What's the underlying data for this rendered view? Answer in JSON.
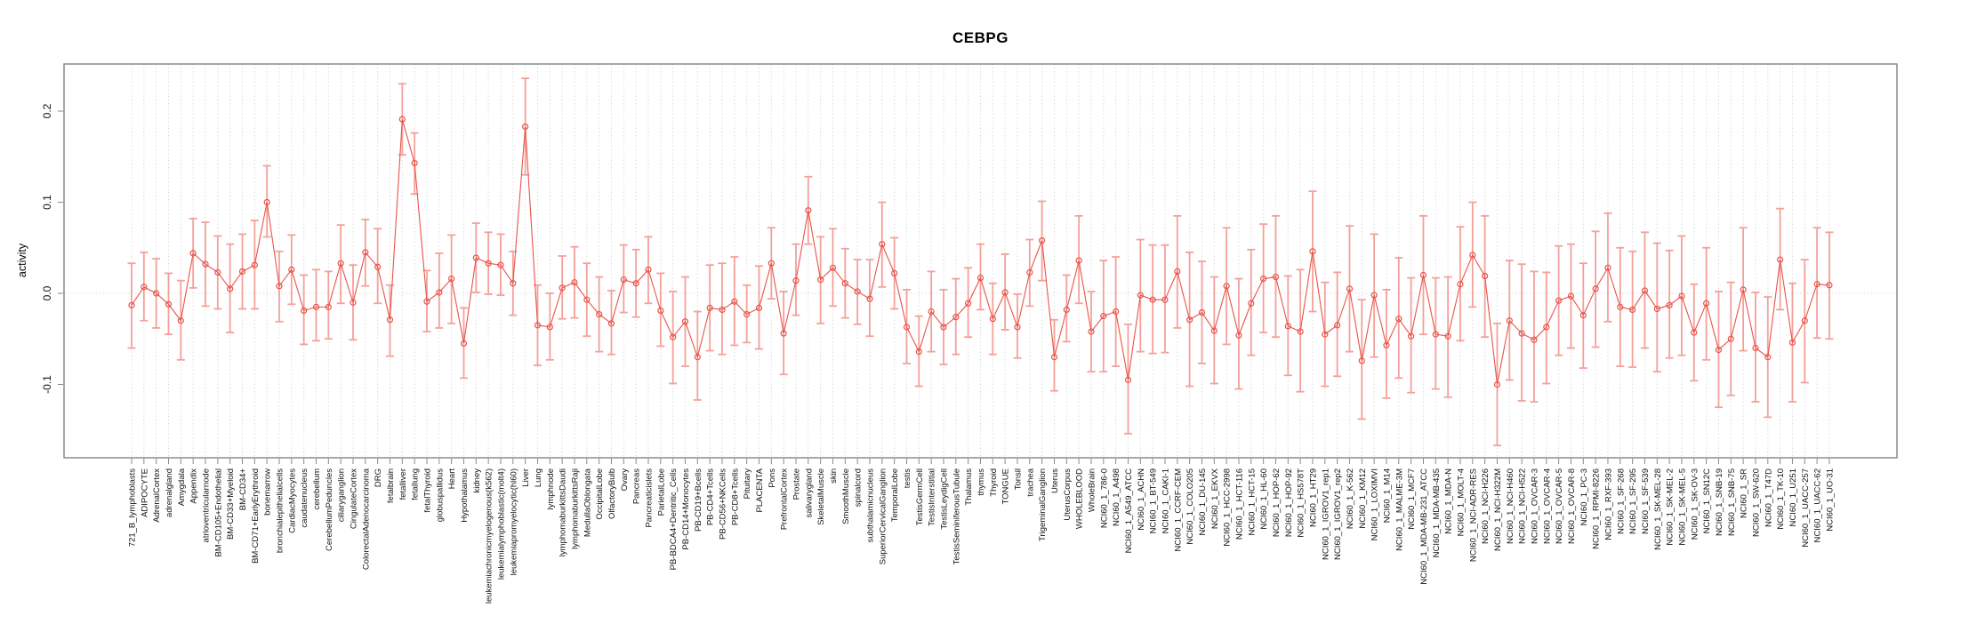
{
  "title": "CEBPG",
  "y_axis_label": "activity",
  "chart_data": {
    "type": "scatter",
    "subtype": "points-with-error-bars-and-connecting-line",
    "title": "CEBPG",
    "xlabel": "",
    "ylabel": "activity",
    "ylim": [
      -0.175,
      0.252
    ],
    "yticks": [
      -0.1,
      0.0,
      0.1,
      0.2
    ],
    "ytick_labels": [
      "-0.1",
      "0.0",
      "0.1",
      "0.2"
    ],
    "grid": "vertical dotted gridline per category; dotted horizontal line at y=0",
    "legend_position": "none",
    "point_color": "#e8534a",
    "line_color": "#e8534a",
    "errorbar_color": "#f4a09a",
    "grid_color": "#dcdcdc",
    "frame_color": "#8a8a8a",
    "categories": [
      "721_B_lymphoblasts",
      "ADIPOCYTE",
      "AdrenalCortex",
      "adrenalgland",
      "Amygdala",
      "Appendix",
      "atrioventricularnode",
      "BM-CD105+Endothelial",
      "BM-CD33+Myeloid",
      "BM-CD34+",
      "BM-CD71+EarlyErythroid",
      "bonemarrow",
      "bronchialepithelialcells",
      "CardiacMyocytes",
      "caudatenucleus",
      "cerebellum",
      "CerebellumPeduncles",
      "ciliaryganglion",
      "CingulateCortex",
      "ColorectalAdenocarcinoma",
      "DRG",
      "fetalbrain",
      "fetalliver",
      "fetallung",
      "fetalThyroid",
      "globuspallidus",
      "Heart",
      "Hypothalamus",
      "kidney",
      "leukemiachronicmyelogenous(k562)",
      "leukemialymphoblastic(molt4)",
      "leukemiapromyelocytic(hl60)",
      "Liver",
      "Lung",
      "lymphnode",
      "lymphomaburkittsDaudi",
      "lymphomaburkittsRaji",
      "MedullaOblongata",
      "OccipitalLobe",
      "OlfactoryBulb",
      "Ovary",
      "Pancreas",
      "Pancreaticislets",
      "ParietalLobe",
      "PB-BDCA4+Dentritic_Cells",
      "PB-CD14+Monocytes",
      "PB-CD19+Bcells",
      "PB-CD4+Tcells",
      "PB-CD56+NKCells",
      "PB-CD8+Tcells",
      "Pituitary",
      "PLACENTA",
      "Pons",
      "PrefrontalCortex",
      "Prostate",
      "salivarygland",
      "SkeletalMuscle",
      "skin",
      "SmoothMuscle",
      "spinalcord",
      "subthalamicnucleus",
      "SuperiorCervicalGanglion",
      "TemporalLobe",
      "testis",
      "TestisGermCell",
      "TestisInterstitial",
      "TestisLeydigCell",
      "TestisSeminiferousTubule",
      "Thalamus",
      "thymus",
      "Thyroid",
      "TONGUE",
      "Tonsil",
      "trachea",
      "TrigeminalGanglion",
      "Uterus",
      "UterusCorpus",
      "WHOLEBLOOD",
      "WholeBrain",
      "NCI60_1_786-0",
      "NCI60_1_A498",
      "NCI60_1_A549_ATCC",
      "NCI60_1_ACHN",
      "NCI60_1_BT-549",
      "NCI60_1_CAKI-1",
      "NCI60_1_CCRF-CEM",
      "NCI60_1_COLO205",
      "NCI60_1_DU-145",
      "NCI60_1_EKVX",
      "NCI60_1_HCC-2998",
      "NCI60_1_HCT-116",
      "NCI60_1_HCT-15",
      "NCI60_1_HL-60",
      "NCI60_1_HOP-62",
      "NCI60_1_HOP-92",
      "NCI60_1_HS578T",
      "NCI60_1_HT29",
      "NCI60_1_IGROV1_rep1",
      "NCI60_1_IGROV1_rep2",
      "NCI60_1_K-562",
      "NCI60_1_KM12",
      "NCI60_1_LOXIMVI",
      "NCI60_1_M14",
      "NCI60_1_MALME-3M",
      "NCI60_1_MCF7",
      "NCI60_1_MDA-MB-231_ATCC",
      "NCI60_1_MDA-MB-435",
      "NCI60_1_MDA-N",
      "NCI60_1_MOLT-4",
      "NCI60_1_NCI-ADR-RES",
      "NCI60_1_NCI-H226",
      "NCI60_1_NCI-H322M",
      "NCI60_1_NCI-H460",
      "NCI60_1_NCI-H522",
      "NCI60_1_OVCAR-3",
      "NCI60_1_OVCAR-4",
      "NCI60_1_OVCAR-5",
      "NCI60_1_OVCAR-8",
      "NCI60_1_PC-3",
      "NCI60_1_RPMI-8226",
      "NCI60_1_RXF-393",
      "NCI60_1_SF-268",
      "NCI60_1_SF-295",
      "NCI60_1_SF-539",
      "NCI60_1_SK-MEL-28",
      "NCI60_1_SK-MEL-2",
      "NCI60_1_SK-MEL-5",
      "NCI60_1_SK-OV-3",
      "NCI60_1_SN12C",
      "NCI60_1_SNB-19",
      "NCI60_1_SNB-75",
      "NCI60_1_SR",
      "NCI60_1_SW-620",
      "NCI60_1_T47D",
      "NCI60_1_TK-10",
      "NCI60_1_U251",
      "NCI60_1_UACC-257",
      "NCI60_1_UACC-62",
      "NCI60_1_UO-31"
    ],
    "series": [
      {
        "name": "activity",
        "values": [
          -0.013,
          0.007,
          0.0,
          -0.012,
          -0.03,
          0.044,
          0.032,
          0.023,
          0.005,
          0.024,
          0.031,
          0.1,
          0.008,
          0.026,
          -0.019,
          -0.015,
          -0.015,
          0.033,
          -0.01,
          0.045,
          0.029,
          -0.029,
          0.191,
          0.143,
          -0.009,
          0.001,
          0.016,
          -0.055,
          0.039,
          0.033,
          0.031,
          0.011,
          0.183,
          -0.035,
          -0.037,
          0.006,
          0.012,
          -0.007,
          -0.023,
          -0.033,
          0.015,
          0.011,
          0.026,
          -0.019,
          -0.048,
          -0.031,
          -0.07,
          -0.016,
          -0.018,
          -0.009,
          -0.023,
          -0.016,
          0.033,
          -0.044,
          0.014,
          0.091,
          0.015,
          0.028,
          0.011,
          0.002,
          -0.006,
          0.054,
          0.022,
          -0.037,
          -0.064,
          -0.02,
          -0.037,
          -0.026,
          -0.011,
          0.017,
          -0.028,
          0.001,
          -0.037,
          0.023,
          0.058,
          -0.07,
          -0.018,
          0.036,
          -0.042,
          -0.025,
          -0.02,
          -0.095,
          -0.002,
          -0.007,
          -0.007,
          0.024,
          -0.029,
          -0.021,
          -0.041,
          0.008,
          -0.046,
          -0.011,
          0.016,
          0.018,
          -0.036,
          -0.042,
          0.046,
          -0.045,
          -0.035,
          0.005,
          -0.074,
          -0.002,
          -0.057,
          -0.028,
          -0.047,
          0.02,
          -0.045,
          -0.047,
          0.01,
          0.042,
          0.019,
          -0.1,
          -0.03,
          -0.044,
          -0.051,
          -0.037,
          -0.008,
          -0.003,
          -0.024,
          0.005,
          0.028,
          -0.015,
          -0.018,
          0.003,
          -0.017,
          -0.013,
          -0.003,
          -0.043,
          -0.011,
          -0.062,
          -0.05,
          0.004,
          -0.06,
          -0.07,
          0.037,
          -0.054,
          -0.03,
          0.01,
          0.009
        ],
        "ci_low": [
          -0.06,
          -0.03,
          -0.038,
          -0.045,
          -0.073,
          0.006,
          -0.014,
          -0.017,
          -0.043,
          -0.017,
          -0.017,
          0.062,
          -0.031,
          -0.012,
          -0.056,
          -0.052,
          -0.05,
          -0.011,
          -0.051,
          0.008,
          -0.011,
          -0.069,
          0.152,
          0.109,
          -0.042,
          -0.038,
          -0.033,
          -0.093,
          0.001,
          -0.001,
          -0.002,
          -0.024,
          0.13,
          -0.079,
          -0.073,
          -0.028,
          -0.027,
          -0.047,
          -0.064,
          -0.067,
          -0.021,
          -0.026,
          -0.011,
          -0.058,
          -0.099,
          -0.08,
          -0.117,
          -0.063,
          -0.067,
          -0.057,
          -0.054,
          -0.061,
          -0.006,
          -0.089,
          -0.024,
          0.054,
          -0.033,
          -0.014,
          -0.027,
          -0.034,
          -0.047,
          0.007,
          -0.017,
          -0.077,
          -0.102,
          -0.064,
          -0.078,
          -0.067,
          -0.048,
          -0.018,
          -0.067,
          -0.04,
          -0.071,
          -0.014,
          0.014,
          -0.107,
          -0.053,
          -0.011,
          -0.086,
          -0.086,
          -0.08,
          -0.154,
          -0.064,
          -0.066,
          -0.065,
          -0.038,
          -0.102,
          -0.077,
          -0.099,
          -0.056,
          -0.105,
          -0.068,
          -0.043,
          -0.048,
          -0.09,
          -0.108,
          -0.02,
          -0.102,
          -0.091,
          -0.064,
          -0.138,
          -0.07,
          -0.115,
          -0.093,
          -0.109,
          -0.045,
          -0.105,
          -0.114,
          -0.052,
          -0.015,
          -0.048,
          -0.167,
          -0.095,
          -0.118,
          -0.119,
          -0.099,
          -0.068,
          -0.06,
          -0.082,
          -0.059,
          -0.031,
          -0.08,
          -0.081,
          -0.06,
          -0.086,
          -0.071,
          -0.068,
          -0.096,
          -0.073,
          -0.125,
          -0.112,
          -0.063,
          -0.119,
          -0.136,
          -0.018,
          -0.119,
          -0.098,
          -0.049,
          -0.05
        ],
        "ci_high": [
          0.033,
          0.045,
          0.038,
          0.022,
          0.014,
          0.082,
          0.078,
          0.063,
          0.054,
          0.065,
          0.08,
          0.14,
          0.046,
          0.064,
          0.02,
          0.026,
          0.024,
          0.075,
          0.031,
          0.081,
          0.071,
          0.009,
          0.23,
          0.176,
          0.025,
          0.044,
          0.064,
          -0.016,
          0.077,
          0.067,
          0.065,
          0.046,
          0.236,
          0.009,
          0.0,
          0.041,
          0.051,
          0.033,
          0.018,
          0.003,
          0.053,
          0.048,
          0.062,
          0.022,
          0.002,
          0.018,
          -0.02,
          0.031,
          0.033,
          0.04,
          0.009,
          0.03,
          0.072,
          0.002,
          0.054,
          0.128,
          0.062,
          0.071,
          0.049,
          0.037,
          0.037,
          0.1,
          0.061,
          0.004,
          -0.025,
          0.024,
          0.004,
          0.016,
          0.028,
          0.054,
          0.011,
          0.043,
          -0.001,
          0.059,
          0.101,
          -0.029,
          0.02,
          0.085,
          0.002,
          0.036,
          0.04,
          -0.034,
          0.059,
          0.053,
          0.053,
          0.085,
          0.045,
          0.035,
          0.018,
          0.072,
          0.016,
          0.048,
          0.076,
          0.085,
          0.019,
          0.026,
          0.112,
          0.012,
          0.023,
          0.074,
          -0.007,
          0.065,
          0.004,
          0.039,
          0.017,
          0.085,
          0.017,
          0.018,
          0.073,
          0.1,
          0.085,
          -0.033,
          0.036,
          0.032,
          0.024,
          0.023,
          0.052,
          0.054,
          0.033,
          0.068,
          0.088,
          0.05,
          0.046,
          0.067,
          0.055,
          0.047,
          0.063,
          0.01,
          0.05,
          0.002,
          0.012,
          0.072,
          0.001,
          -0.004,
          0.093,
          0.011,
          0.037,
          0.072,
          0.067
        ]
      }
    ]
  }
}
